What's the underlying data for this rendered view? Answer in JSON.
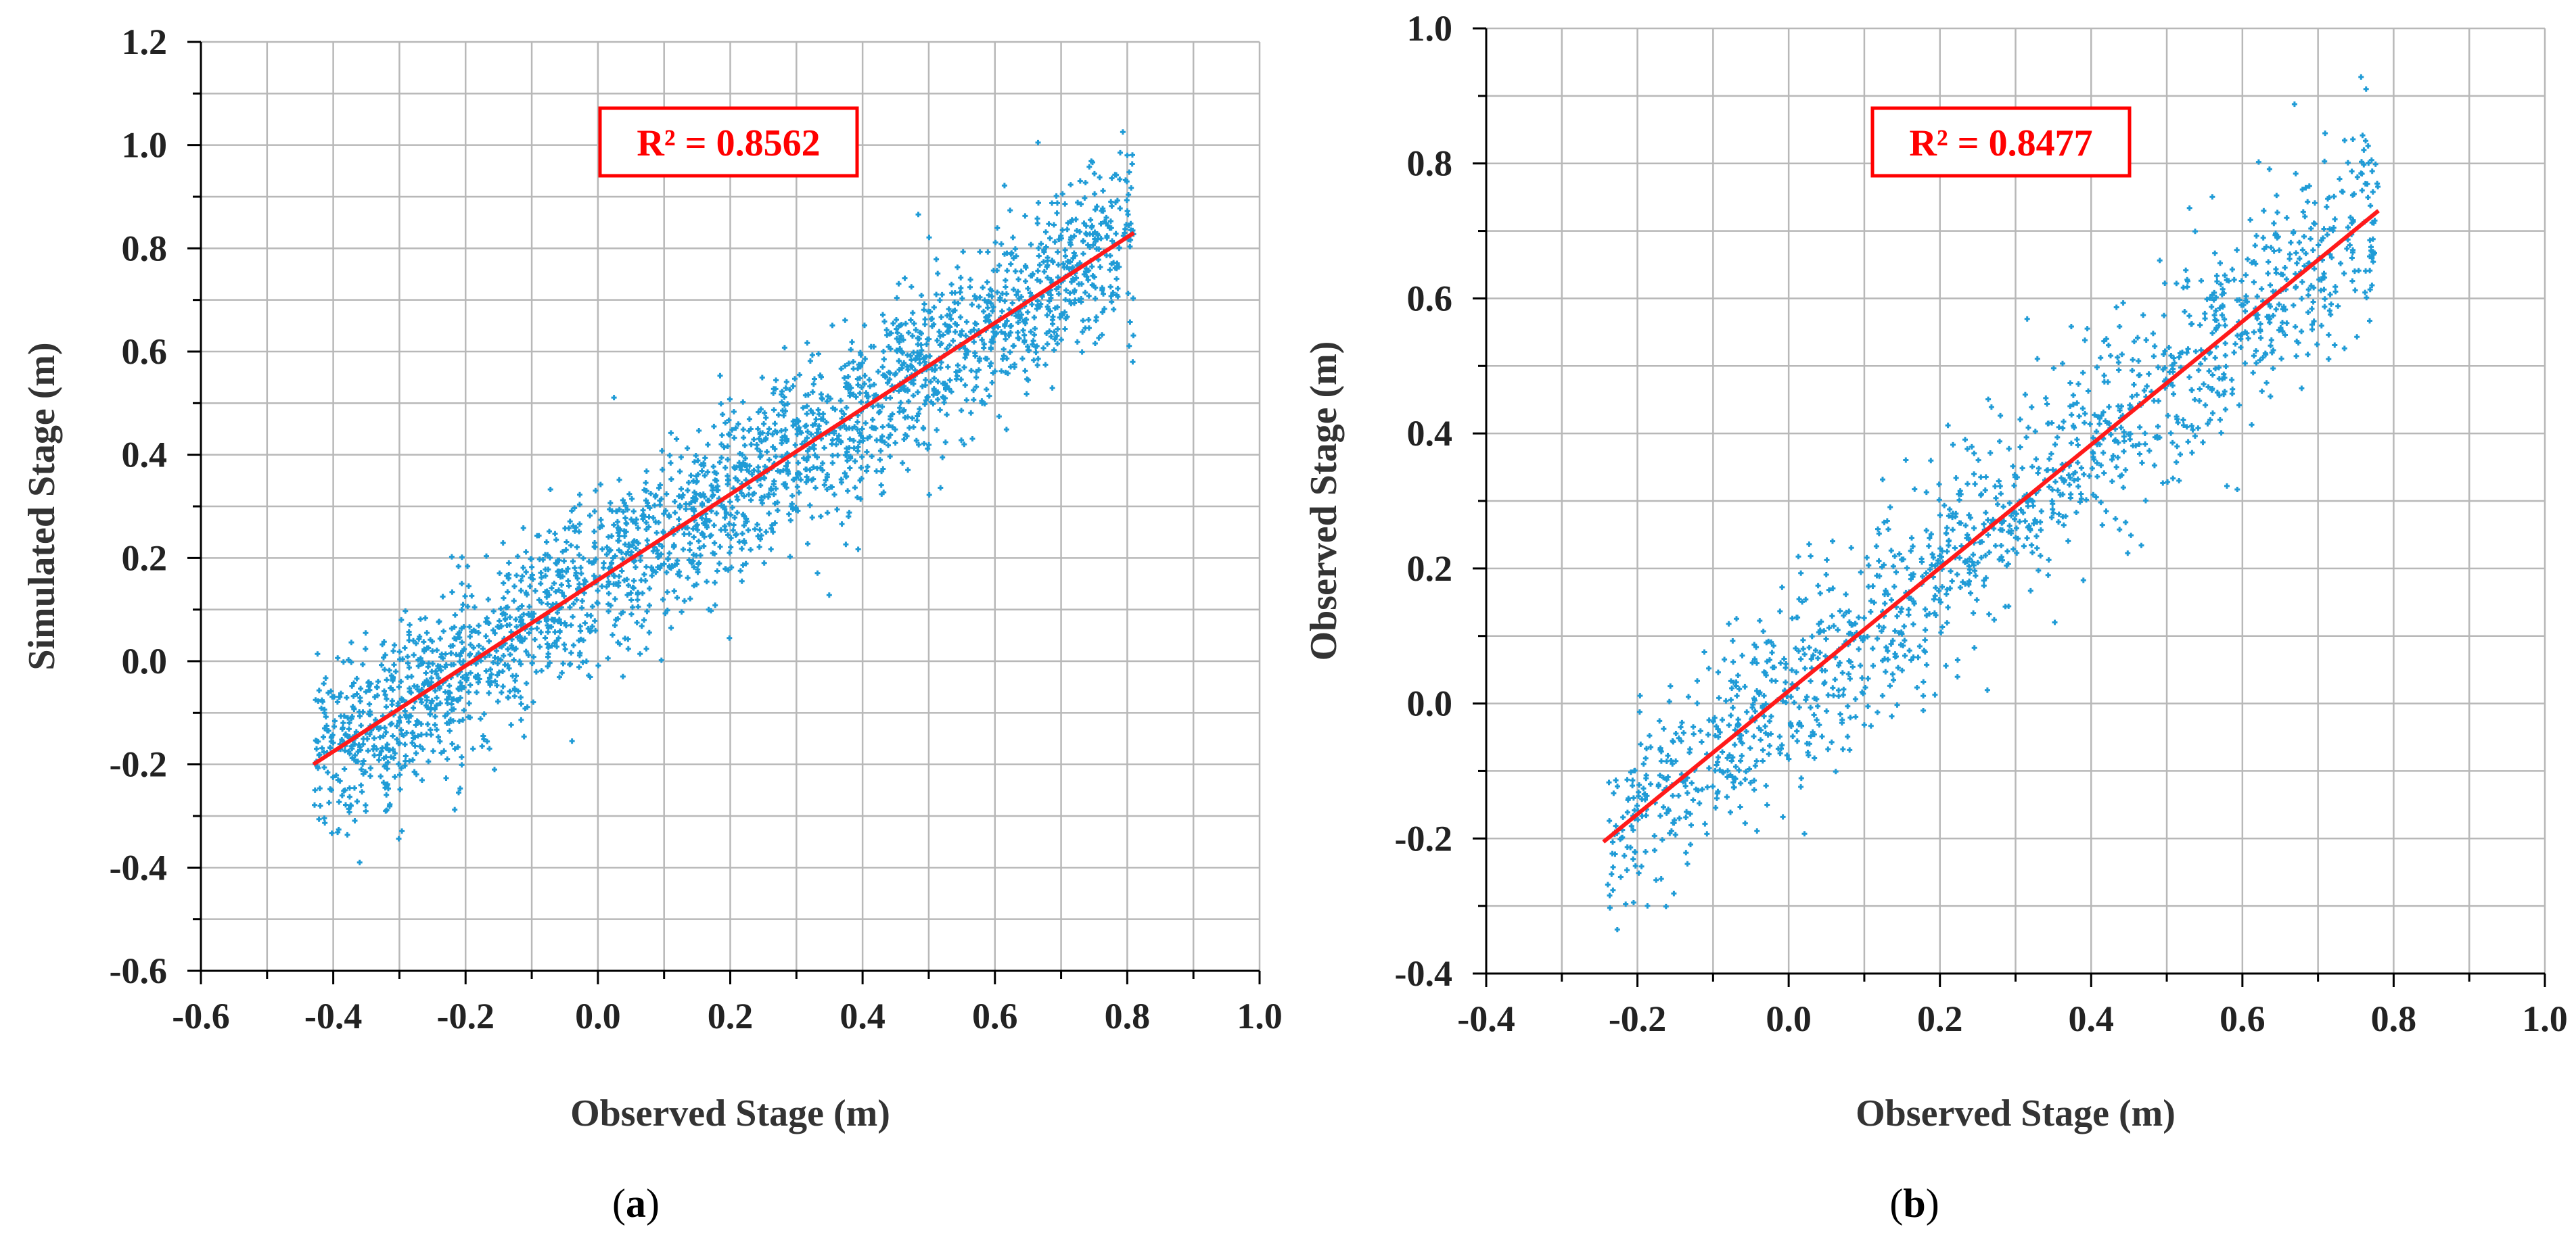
{
  "colors": {
    "points": "#1f9bd6",
    "fit_line": "#ff1a1a",
    "grid": "#b8b8b8",
    "axis": "#000000",
    "r2_box": "#ff0000"
  },
  "chart_data": [
    {
      "type": "scatter",
      "panel_label": "a",
      "annotation": "R² = 0.8562",
      "r_squared": 0.8562,
      "xlabel": "Observed Stage (m)",
      "ylabel": "Simulated Stage (m)",
      "xlim": [
        -0.6,
        1.0
      ],
      "ylim": [
        -0.6,
        1.2
      ],
      "xticks": [
        "-0.6",
        "-0.4",
        "-0.2",
        "0.0",
        "0.2",
        "0.4",
        "0.6",
        "0.8",
        "1.0"
      ],
      "yticks": [
        "-0.6",
        "-0.4",
        "-0.2",
        "0.0",
        "0.2",
        "0.4",
        "0.6",
        "0.8",
        "1.0",
        "1.2"
      ],
      "grid": true,
      "point_cloud": {
        "count": 2600,
        "x_range": [
          -0.43,
          0.81
        ],
        "slope": 0.832,
        "intercept": 0.158,
        "spread": 0.085,
        "seed": 11
      },
      "trendline": {
        "x": [
          -0.43,
          0.81
        ],
        "y": [
          -0.2,
          0.83
        ]
      }
    },
    {
      "type": "scatter",
      "panel_label": "b",
      "annotation": "R² = 0.8477",
      "r_squared": 0.8477,
      "xlabel": "Observed Stage (m)",
      "ylabel": "Observed Stage (m)",
      "xlim": [
        -0.4,
        1.0
      ],
      "ylim": [
        -0.4,
        1.0
      ],
      "xticks": [
        "-0.4",
        "-0.2",
        "0.0",
        "0.2",
        "0.4",
        "0.6",
        "0.8",
        "1.0"
      ],
      "yticks": [
        "-0.4",
        "-0.2",
        "0.0",
        "0.2",
        "0.4",
        "0.6",
        "0.8",
        "1.0"
      ],
      "grid": true,
      "point_cloud": {
        "count": 1500,
        "x_range": [
          -0.24,
          0.78
        ],
        "slope": 0.915,
        "intercept": 0.017,
        "spread": 0.075,
        "seed": 29
      },
      "trendline": {
        "x": [
          -0.245,
          0.78
        ],
        "y": [
          -0.205,
          0.73
        ]
      }
    }
  ]
}
